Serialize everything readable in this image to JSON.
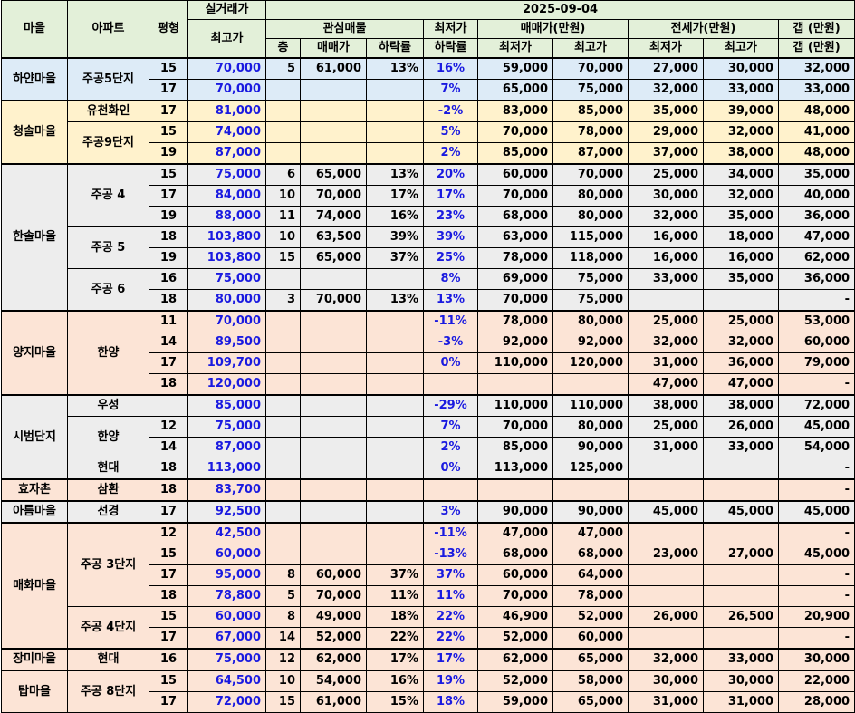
{
  "header": {
    "date": "2025-09-04",
    "village": "마을",
    "apartment": "아파트",
    "pyeong": "평형",
    "actual_top": "실거래가",
    "actual_sub": "최고가",
    "interest": "관심매물",
    "floor": "층",
    "sale_price": "매매가",
    "drop_rate": "하락률",
    "lowest_top": "최저가",
    "lowest_sub": "하락률",
    "sale_range": "매매가(만원)",
    "jeonse_range": "전세가(만원)",
    "min": "최저가",
    "max": "최고가",
    "gap": "갭 (만원)"
  },
  "rows": [
    {
      "group": "blue",
      "village": "하얀마을",
      "vspan": 2,
      "apt": "주공5단지",
      "aspan": 2,
      "py": "15",
      "actual": "70,000",
      "fl": "5",
      "price": "61,000",
      "drop": "13%",
      "low_drop": "16%",
      "smin": "59,000",
      "smax": "70,000",
      "jmin": "27,000",
      "jmax": "30,000",
      "gap": "32,000"
    },
    {
      "group": "blue",
      "py": "17",
      "actual": "70,000",
      "fl": "",
      "price": "",
      "drop": "",
      "low_drop": "7%",
      "smin": "65,000",
      "smax": "75,000",
      "jmin": "32,000",
      "jmax": "33,000",
      "gap": "33,000"
    },
    {
      "group": "yellow",
      "village": "청솔마을",
      "vspan": 3,
      "apt": "유천화인",
      "aspan": 1,
      "py": "17",
      "actual": "81,000",
      "fl": "",
      "price": "",
      "drop": "",
      "low_drop": "-2%",
      "smin": "83,000",
      "smax": "85,000",
      "jmin": "35,000",
      "jmax": "39,000",
      "gap": "48,000"
    },
    {
      "group": "yellow",
      "apt": "주공9단지",
      "aspan": 2,
      "py": "15",
      "actual": "74,000",
      "fl": "",
      "price": "",
      "drop": "",
      "low_drop": "5%",
      "smin": "70,000",
      "smax": "78,000",
      "jmin": "29,000",
      "jmax": "32,000",
      "gap": "41,000"
    },
    {
      "group": "yellow",
      "py": "19",
      "actual": "87,000",
      "fl": "",
      "price": "",
      "drop": "",
      "low_drop": "2%",
      "smin": "85,000",
      "smax": "87,000",
      "jmin": "37,000",
      "jmax": "38,000",
      "gap": "48,000"
    },
    {
      "group": "gray",
      "village": "한솔마을",
      "vspan": 7,
      "apt": "주공 4",
      "aspan": 3,
      "py": "15",
      "actual": "75,000",
      "fl": "6",
      "price": "65,000",
      "drop": "13%",
      "low_drop": "20%",
      "smin": "60,000",
      "smax": "70,000",
      "jmin": "25,000",
      "jmax": "34,000",
      "gap": "35,000"
    },
    {
      "group": "gray",
      "py": "17",
      "actual": "84,000",
      "fl": "10",
      "price": "70,000",
      "drop": "17%",
      "low_drop": "17%",
      "smin": "70,000",
      "smax": "80,000",
      "jmin": "30,000",
      "jmax": "32,000",
      "gap": "40,000"
    },
    {
      "group": "gray",
      "py": "19",
      "actual": "88,000",
      "fl": "11",
      "price": "74,000",
      "drop": "16%",
      "low_drop": "23%",
      "smin": "68,000",
      "smax": "80,000",
      "jmin": "32,000",
      "jmax": "35,000",
      "gap": "36,000"
    },
    {
      "group": "gray",
      "apt": "주공 5",
      "aspan": 2,
      "py": "18",
      "actual": "103,800",
      "fl": "10",
      "price": "63,500",
      "drop": "39%",
      "low_drop": "39%",
      "smin": "63,000",
      "smax": "115,000",
      "jmin": "16,000",
      "jmax": "18,000",
      "gap": "47,000"
    },
    {
      "group": "gray",
      "py": "19",
      "actual": "103,800",
      "fl": "15",
      "price": "65,000",
      "drop": "37%",
      "low_drop": "25%",
      "smin": "78,000",
      "smax": "118,000",
      "jmin": "16,000",
      "jmax": "16,000",
      "gap": "62,000"
    },
    {
      "group": "gray",
      "apt": "주공 6",
      "aspan": 2,
      "py": "16",
      "actual": "75,000",
      "fl": "",
      "price": "",
      "drop": "",
      "low_drop": "8%",
      "smin": "69,000",
      "smax": "75,000",
      "jmin": "33,000",
      "jmax": "35,000",
      "gap": "36,000"
    },
    {
      "group": "gray",
      "py": "18",
      "actual": "80,000",
      "fl": "3",
      "price": "70,000",
      "drop": "13%",
      "low_drop": "13%",
      "smin": "70,000",
      "smax": "75,000",
      "jmin": "",
      "jmax": "",
      "gap": "-"
    },
    {
      "group": "pink",
      "village": "양지마을",
      "vspan": 4,
      "apt": "한양",
      "aspan": 4,
      "py": "11",
      "actual": "70,000",
      "fl": "",
      "price": "",
      "drop": "",
      "low_drop": "-11%",
      "smin": "78,000",
      "smax": "80,000",
      "jmin": "25,000",
      "jmax": "25,000",
      "gap": "53,000"
    },
    {
      "group": "pink",
      "py": "14",
      "actual": "89,500",
      "fl": "",
      "price": "",
      "drop": "",
      "low_drop": "-3%",
      "smin": "92,000",
      "smax": "92,000",
      "jmin": "32,000",
      "jmax": "32,000",
      "gap": "60,000"
    },
    {
      "group": "pink",
      "py": "17",
      "actual": "109,700",
      "fl": "",
      "price": "",
      "drop": "",
      "low_drop": "0%",
      "smin": "110,000",
      "smax": "120,000",
      "jmin": "31,000",
      "jmax": "36,000",
      "gap": "79,000"
    },
    {
      "group": "pink",
      "py": "18",
      "actual": "120,000",
      "fl": "",
      "price": "",
      "drop": "",
      "low_drop": "",
      "smin": "",
      "smax": "",
      "jmin": "47,000",
      "jmax": "47,000",
      "gap": "-"
    },
    {
      "group": "gray",
      "village": "시범단지",
      "vspan": 4,
      "apt": "우성",
      "aspan": 1,
      "py": "",
      "actual": "85,000",
      "fl": "",
      "price": "",
      "drop": "",
      "low_drop": "-29%",
      "smin": "110,000",
      "smax": "110,000",
      "jmin": "38,000",
      "jmax": "38,000",
      "gap": "72,000"
    },
    {
      "group": "gray",
      "apt": "한양",
      "aspan": 2,
      "py": "12",
      "actual": "75,000",
      "fl": "",
      "price": "",
      "drop": "",
      "low_drop": "7%",
      "smin": "70,000",
      "smax": "80,000",
      "jmin": "25,000",
      "jmax": "26,000",
      "gap": "45,000"
    },
    {
      "group": "gray",
      "py": "14",
      "actual": "87,000",
      "fl": "",
      "price": "",
      "drop": "",
      "low_drop": "2%",
      "smin": "85,000",
      "smax": "90,000",
      "jmin": "31,000",
      "jmax": "33,000",
      "gap": "54,000"
    },
    {
      "group": "gray",
      "apt": "현대",
      "aspan": 1,
      "py": "18",
      "actual": "113,000",
      "fl": "",
      "price": "",
      "drop": "",
      "low_drop": "0%",
      "smin": "113,000",
      "smax": "125,000",
      "jmin": "",
      "jmax": "",
      "gap": "-"
    },
    {
      "group": "pink",
      "village": "효자촌",
      "vspan": 1,
      "apt": "삼환",
      "aspan": 1,
      "py": "18",
      "actual": "83,700",
      "fl": "",
      "price": "",
      "drop": "",
      "low_drop": "",
      "smin": "",
      "smax": "",
      "jmin": "",
      "jmax": "",
      "gap": "-"
    },
    {
      "group": "gray",
      "village": "아름마을",
      "vspan": 1,
      "apt": "선경",
      "aspan": 1,
      "py": "17",
      "actual": "92,500",
      "fl": "",
      "price": "",
      "drop": "",
      "low_drop": "3%",
      "smin": "90,000",
      "smax": "90,000",
      "jmin": "45,000",
      "jmax": "45,000",
      "gap": "45,000"
    },
    {
      "group": "pink",
      "village": "매화마을",
      "vspan": 6,
      "apt": "주공 3단지",
      "aspan": 4,
      "py": "12",
      "actual": "42,500",
      "fl": "",
      "price": "",
      "drop": "",
      "low_drop": "-11%",
      "smin": "47,000",
      "smax": "47,000",
      "jmin": "",
      "jmax": "",
      "gap": "-"
    },
    {
      "group": "pink",
      "py": "15",
      "actual": "60,000",
      "fl": "",
      "price": "",
      "drop": "",
      "low_drop": "-13%",
      "smin": "68,000",
      "smax": "68,000",
      "jmin": "23,000",
      "jmax": "27,000",
      "gap": "45,000"
    },
    {
      "group": "pink",
      "py": "17",
      "actual": "95,000",
      "fl": "8",
      "price": "60,000",
      "drop": "37%",
      "low_drop": "37%",
      "smin": "60,000",
      "smax": "64,000",
      "jmin": "",
      "jmax": "",
      "gap": "-"
    },
    {
      "group": "pink",
      "py": "18",
      "actual": "78,800",
      "fl": "5",
      "price": "70,000",
      "drop": "11%",
      "low_drop": "11%",
      "smin": "70,000",
      "smax": "78,000",
      "jmin": "",
      "jmax": "",
      "gap": "-"
    },
    {
      "group": "pink",
      "apt": "주공 4단지",
      "aspan": 2,
      "py": "15",
      "actual": "60,000",
      "fl": "8",
      "price": "49,000",
      "drop": "18%",
      "low_drop": "22%",
      "smin": "46,900",
      "smax": "52,000",
      "jmin": "26,000",
      "jmax": "26,500",
      "gap": "20,900"
    },
    {
      "group": "pink",
      "py": "17",
      "actual": "67,000",
      "fl": "14",
      "price": "52,000",
      "drop": "22%",
      "low_drop": "22%",
      "smin": "52,000",
      "smax": "60,000",
      "jmin": "",
      "jmax": "",
      "gap": "-"
    },
    {
      "group": "pink",
      "village": "장미마을",
      "vspan": 1,
      "apt": "현대",
      "aspan": 1,
      "py": "16",
      "actual": "75,000",
      "fl": "12",
      "price": "62,000",
      "drop": "17%",
      "low_drop": "17%",
      "smin": "62,000",
      "smax": "65,000",
      "jmin": "32,000",
      "jmax": "33,000",
      "gap": "30,000"
    },
    {
      "group": "pink",
      "village": "탑마을",
      "vspan": 2,
      "apt": "주공 8단지",
      "aspan": 2,
      "py": "15",
      "actual": "64,500",
      "fl": "10",
      "price": "54,000",
      "drop": "16%",
      "low_drop": "19%",
      "smin": "52,000",
      "smax": "58,000",
      "jmin": "30,000",
      "jmax": "30,000",
      "gap": "22,000"
    },
    {
      "group": "pink",
      "py": "17",
      "actual": "72,000",
      "fl": "15",
      "price": "61,000",
      "drop": "15%",
      "low_drop": "18%",
      "smin": "59,000",
      "smax": "65,000",
      "jmin": "31,000",
      "jmax": "31,000",
      "gap": "28,000"
    }
  ]
}
